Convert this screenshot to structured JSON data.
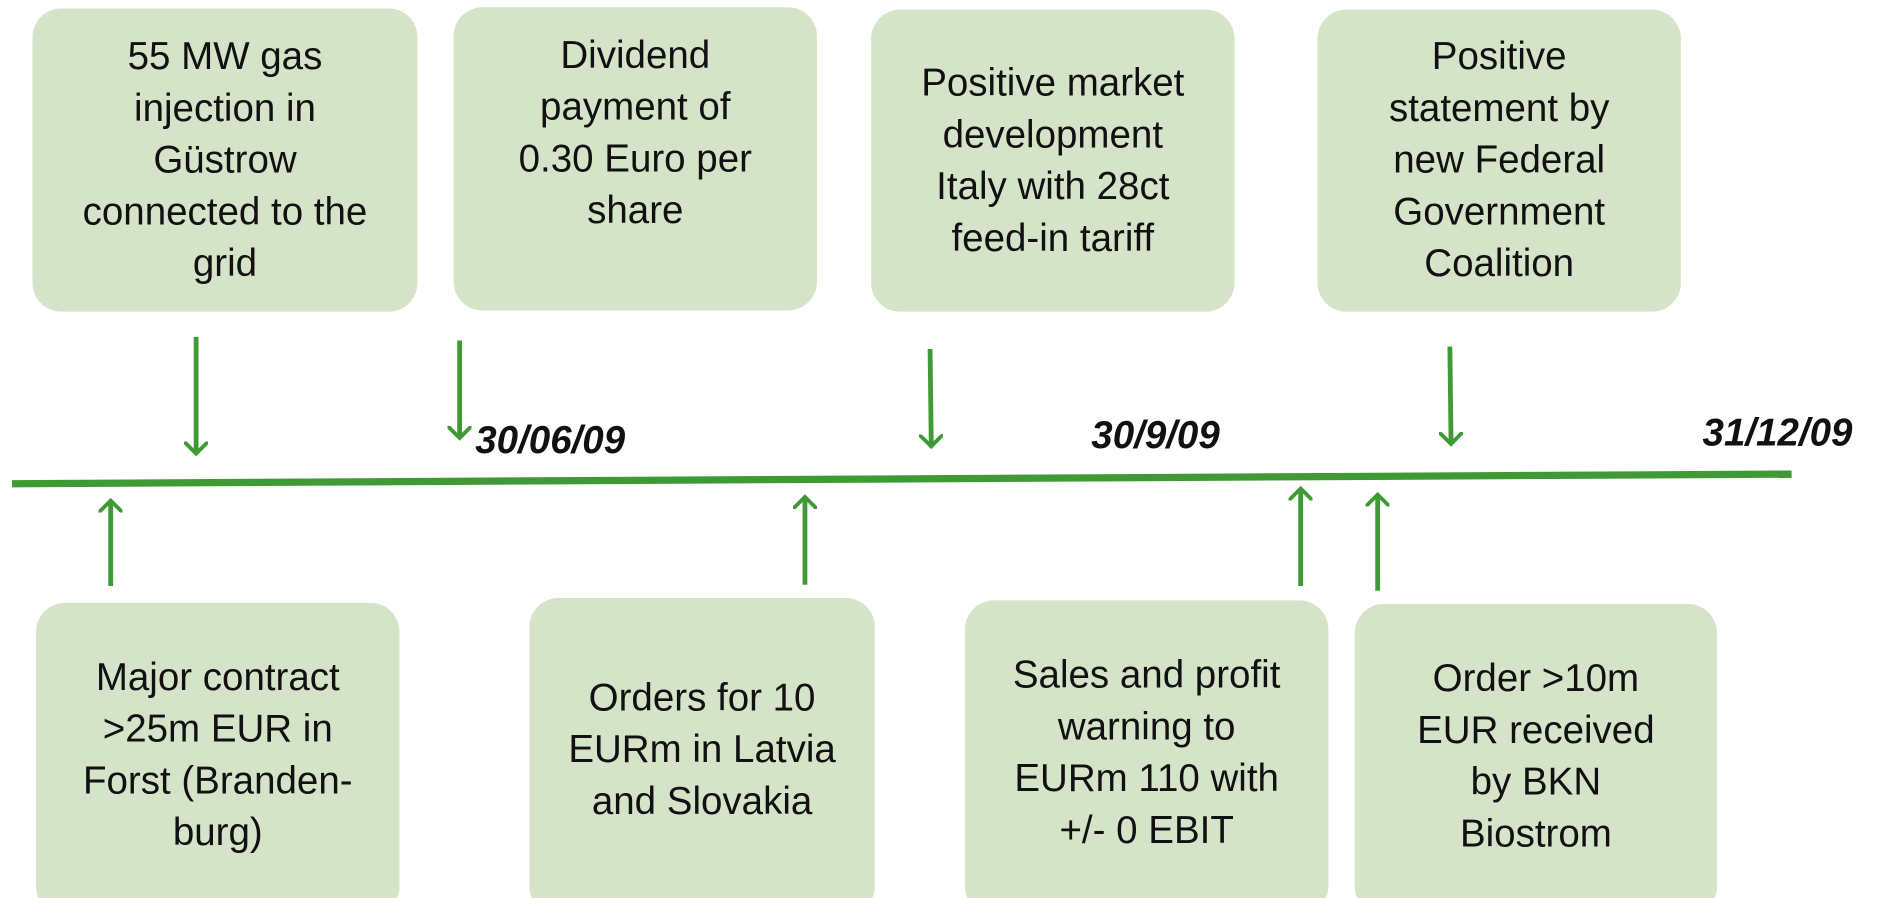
{
  "top_events": [
    {
      "lines": [
        "55 MW gas",
        "injection in",
        "Güstrow",
        "connected to the",
        "grid"
      ]
    },
    {
      "lines": [
        "Dividend",
        "payment of",
        "0.30 Euro per",
        "share"
      ]
    },
    {
      "lines": [
        "Positive market",
        "development",
        "Italy with 28ct",
        "feed-in tariff"
      ]
    },
    {
      "lines": [
        "Positive",
        "statement by",
        "new Federal",
        "Government",
        "Coalition"
      ]
    }
  ],
  "bottom_events": [
    {
      "lines": [
        "Major contract",
        ">25m EUR in",
        "Forst (Branden-",
        "burg)"
      ]
    },
    {
      "lines": [
        "Orders for 10",
        "EURm in Latvia",
        "and Slovakia"
      ]
    },
    {
      "lines": [
        "Sales and profit",
        "warning to",
        "EURm 110 with",
        "+/- 0 EBIT"
      ]
    },
    {
      "lines": [
        "Order >10m",
        "EUR received",
        "by BKN",
        "Biostrom"
      ]
    }
  ],
  "dates": [
    "30/06/09",
    "30/9/09",
    "31/12/09"
  ]
}
